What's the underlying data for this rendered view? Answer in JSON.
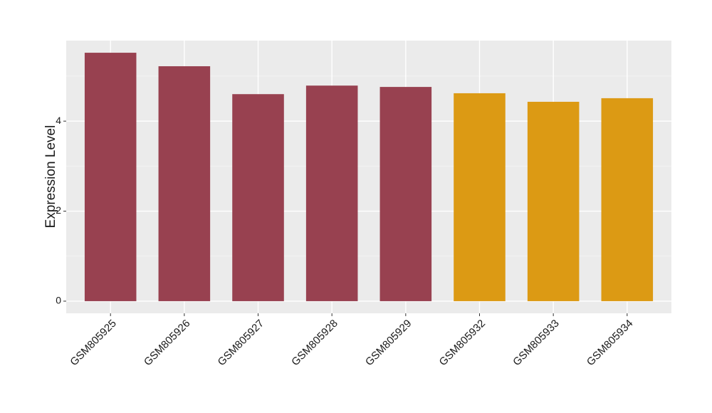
{
  "chart_data": {
    "type": "bar",
    "y_label": "Expression Level",
    "categories": [
      "GSM805925",
      "GSM805926",
      "GSM805927",
      "GSM805928",
      "GSM805929",
      "GSM805932",
      "GSM805933",
      "GSM805934"
    ],
    "values": [
      5.52,
      5.22,
      4.6,
      4.79,
      4.76,
      4.62,
      4.43,
      4.51
    ],
    "colors": [
      "#984150",
      "#984150",
      "#984150",
      "#984150",
      "#984150",
      "#dc9a14",
      "#dc9a14",
      "#dc9a14"
    ],
    "ylim": [
      -0.27,
      5.79
    ],
    "yticks": [
      0,
      2,
      4
    ],
    "yminor": [
      1,
      3,
      5
    ],
    "grid": true
  }
}
